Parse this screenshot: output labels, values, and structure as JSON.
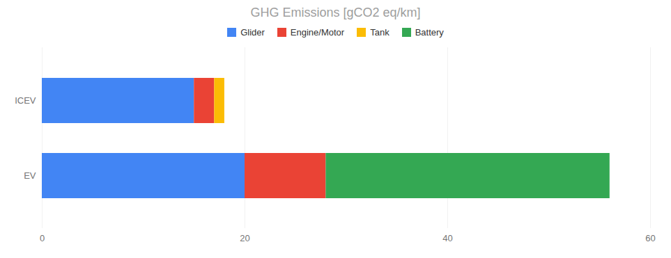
{
  "chart_data": {
    "type": "bar",
    "orientation": "horizontal",
    "stacked": true,
    "title": "GHG Emissions [gCO2 eq/km]",
    "categories": [
      "EV",
      "ICEV"
    ],
    "series": [
      {
        "name": "Glider",
        "color": "#4285F4",
        "values": [
          20,
          15
        ]
      },
      {
        "name": "Engine/Motor",
        "color": "#EA4335",
        "values": [
          8,
          2
        ]
      },
      {
        "name": "Tank",
        "color": "#FBBC05",
        "values": [
          0,
          1
        ]
      },
      {
        "name": "Battery",
        "color": "#34A853",
        "values": [
          28,
          0
        ]
      }
    ],
    "xlim": [
      0,
      60
    ],
    "xticks": [
      0,
      20,
      40,
      60
    ],
    "grid": true,
    "legend": "top"
  }
}
